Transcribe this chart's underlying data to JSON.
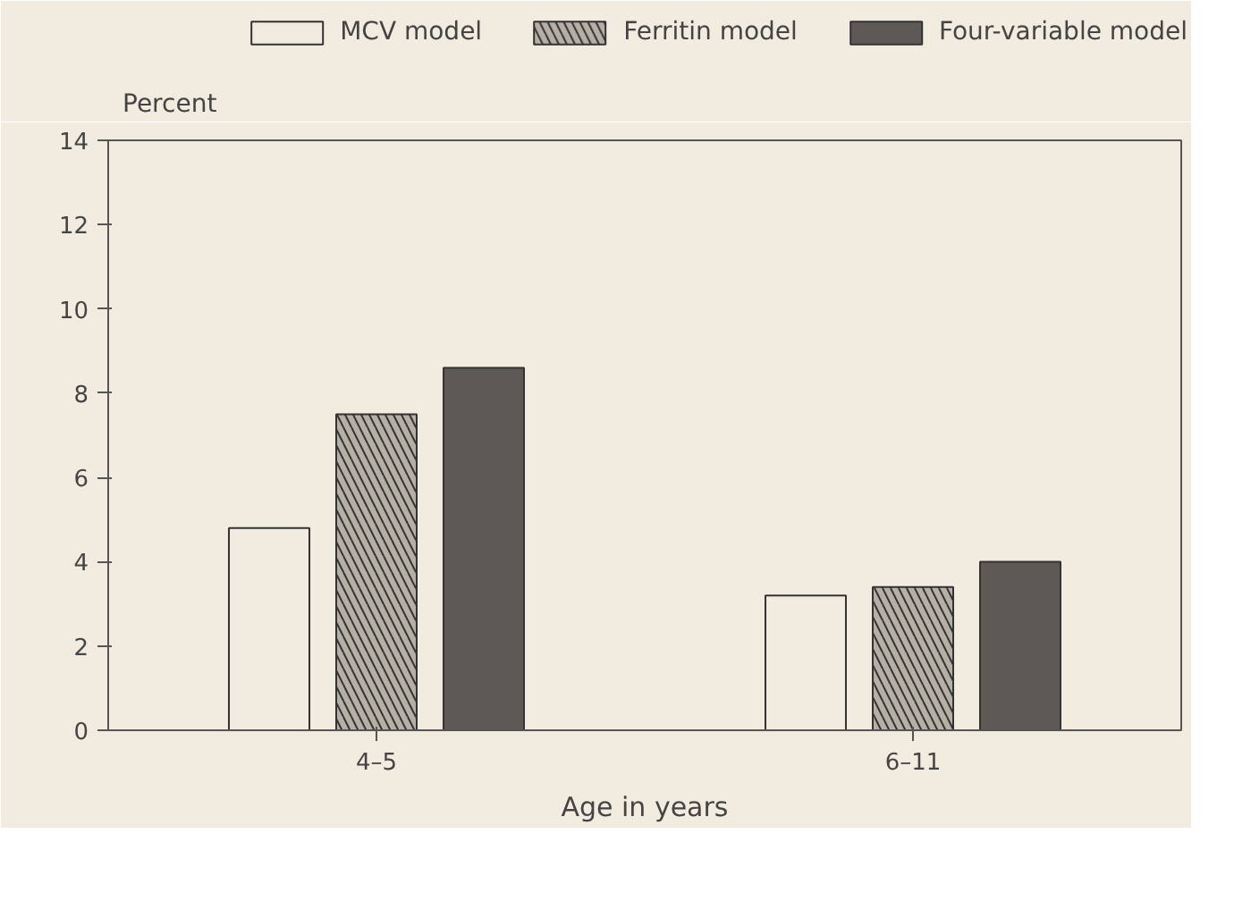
{
  "chart_data": {
    "type": "bar",
    "categories": [
      "4–5",
      "6–11"
    ],
    "xlabel": "Age in years",
    "ylabel": "Percent",
    "ylim": [
      0,
      14
    ],
    "yticks": [
      0,
      2,
      4,
      6,
      8,
      10,
      12,
      14
    ],
    "grid": false,
    "legend": "top",
    "series": [
      {
        "name": "MCV model",
        "color": "#f2ece0",
        "values": [
          4.8,
          3.2
        ]
      },
      {
        "name": "Ferritin model",
        "color": "#b5afa6",
        "values": [
          7.5,
          3.4
        ]
      },
      {
        "name": "Four-variable model",
        "color": "#5e5954",
        "values": [
          8.6,
          4.0
        ]
      }
    ]
  }
}
